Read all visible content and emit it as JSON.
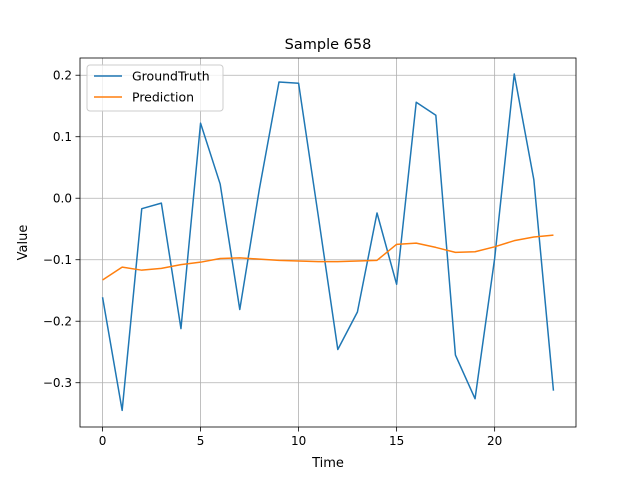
{
  "chart_data": {
    "type": "line",
    "title": "Sample 658",
    "xlabel": "Time",
    "ylabel": "Value",
    "xlim": [
      -1.15,
      24.15
    ],
    "ylim": [
      -0.372,
      0.228
    ],
    "grid": true,
    "legend_position": "top-left",
    "x_ticks": [
      0,
      5,
      10,
      15,
      20
    ],
    "y_ticks": [
      -0.3,
      -0.2,
      -0.1,
      0.0,
      0.1,
      0.2
    ],
    "x_tick_labels": [
      "0",
      "5",
      "10",
      "15",
      "20"
    ],
    "y_tick_labels": [
      "−0.3",
      "−0.2",
      "−0.1",
      "0.0",
      "0.1",
      "0.2"
    ],
    "x": [
      0,
      1,
      2,
      3,
      4,
      5,
      6,
      7,
      8,
      9,
      10,
      11,
      12,
      13,
      14,
      15,
      16,
      17,
      18,
      19,
      20,
      21,
      22,
      23
    ],
    "series": [
      {
        "name": "GroundTruth",
        "color": "#1f77b4",
        "values": [
          -0.161,
          -0.345,
          -0.017,
          -0.008,
          -0.212,
          0.122,
          0.023,
          -0.181,
          0.015,
          0.189,
          0.187,
          -0.028,
          -0.246,
          -0.185,
          -0.024,
          -0.14,
          0.156,
          0.135,
          -0.255,
          -0.326,
          -0.098,
          0.202,
          0.03,
          -0.313
        ]
      },
      {
        "name": "Prediction",
        "color": "#ff7f0e",
        "values": [
          -0.133,
          -0.112,
          -0.117,
          -0.114,
          -0.108,
          -0.104,
          -0.098,
          -0.097,
          -0.099,
          -0.101,
          -0.102,
          -0.103,
          -0.103,
          -0.102,
          -0.101,
          -0.075,
          -0.073,
          -0.08,
          -0.088,
          -0.087,
          -0.079,
          -0.069,
          -0.063,
          -0.06
        ]
      }
    ]
  }
}
